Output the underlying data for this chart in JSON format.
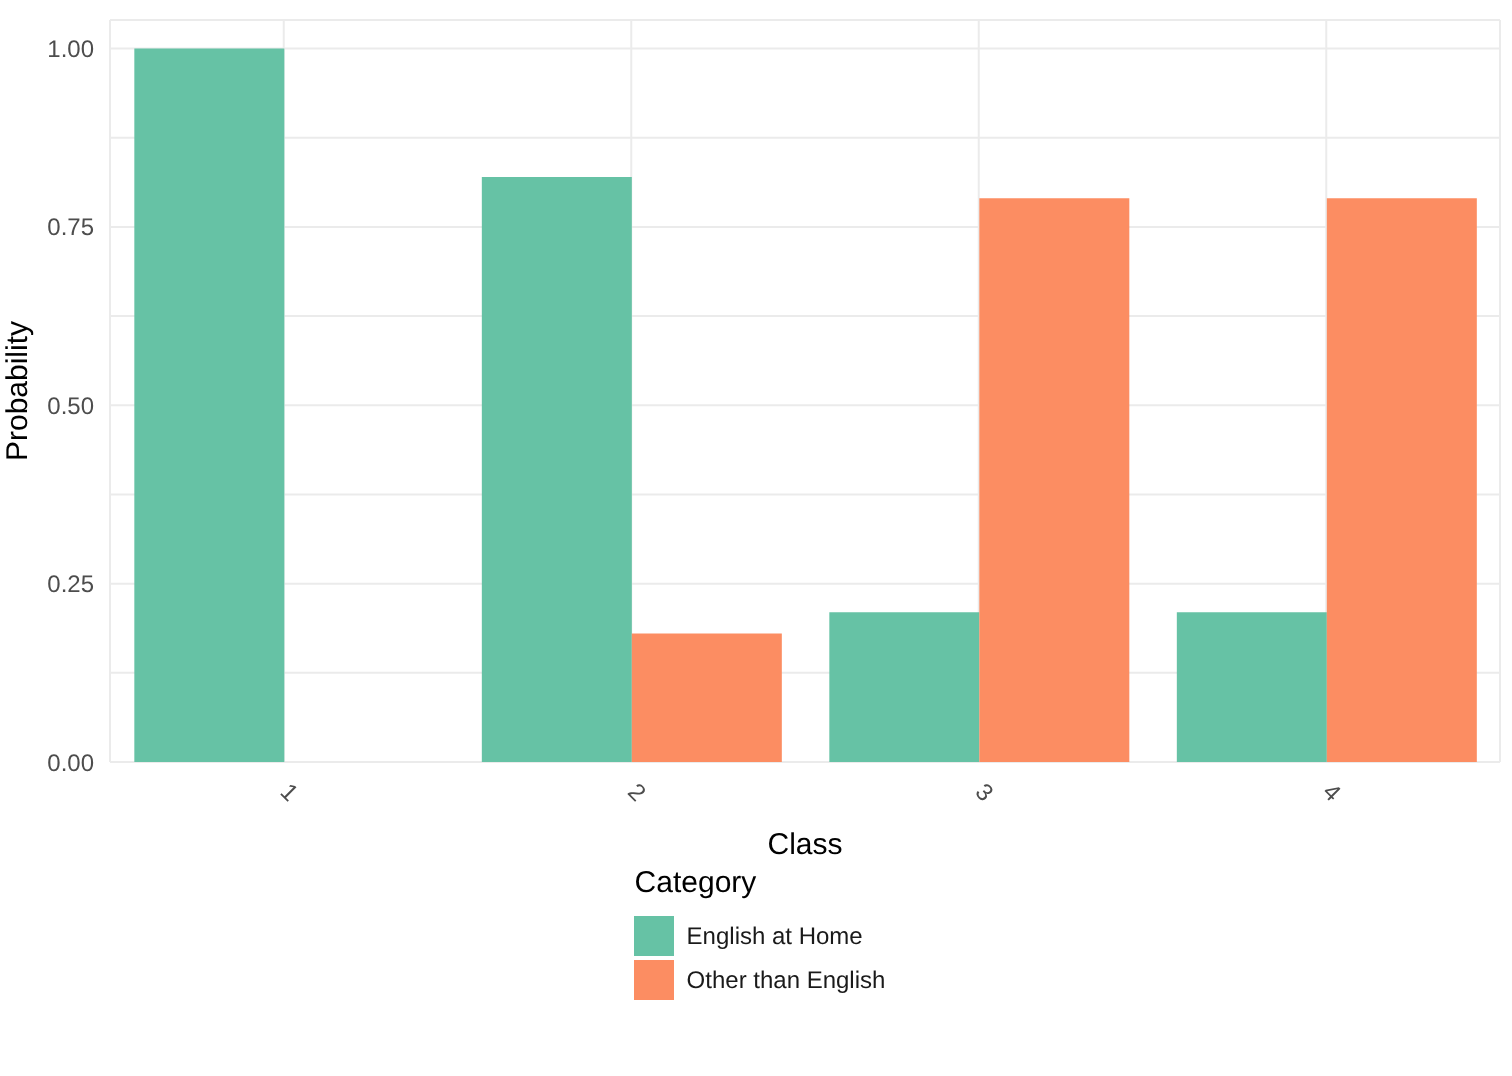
{
  "chart_data": {
    "type": "bar",
    "xlabel": "Class",
    "ylabel": "Probability",
    "legend_title": "Category",
    "categories": [
      "1",
      "2",
      "3",
      "4"
    ],
    "series": [
      {
        "name": "English at Home",
        "color": "#66c2a5",
        "values": [
          1.0,
          0.82,
          0.21,
          0.21
        ]
      },
      {
        "name": "Other than English",
        "color": "#fc8d62",
        "values": [
          0,
          0.18,
          0.79,
          0.79
        ]
      }
    ],
    "ylim": [
      0,
      1.04
    ],
    "yticks": [
      {
        "value": 0,
        "label": "0.00"
      },
      {
        "value": 0.125,
        "label": null
      },
      {
        "value": 0.25,
        "label": "0.25"
      },
      {
        "value": 0.375,
        "label": null
      },
      {
        "value": 0.5,
        "label": "0.50"
      },
      {
        "value": 0.625,
        "label": null
      },
      {
        "value": 0.75,
        "label": "0.75"
      },
      {
        "value": 0.875,
        "label": null
      },
      {
        "value": 1,
        "label": "1.00"
      }
    ],
    "grid": true,
    "legend": "bottom"
  }
}
